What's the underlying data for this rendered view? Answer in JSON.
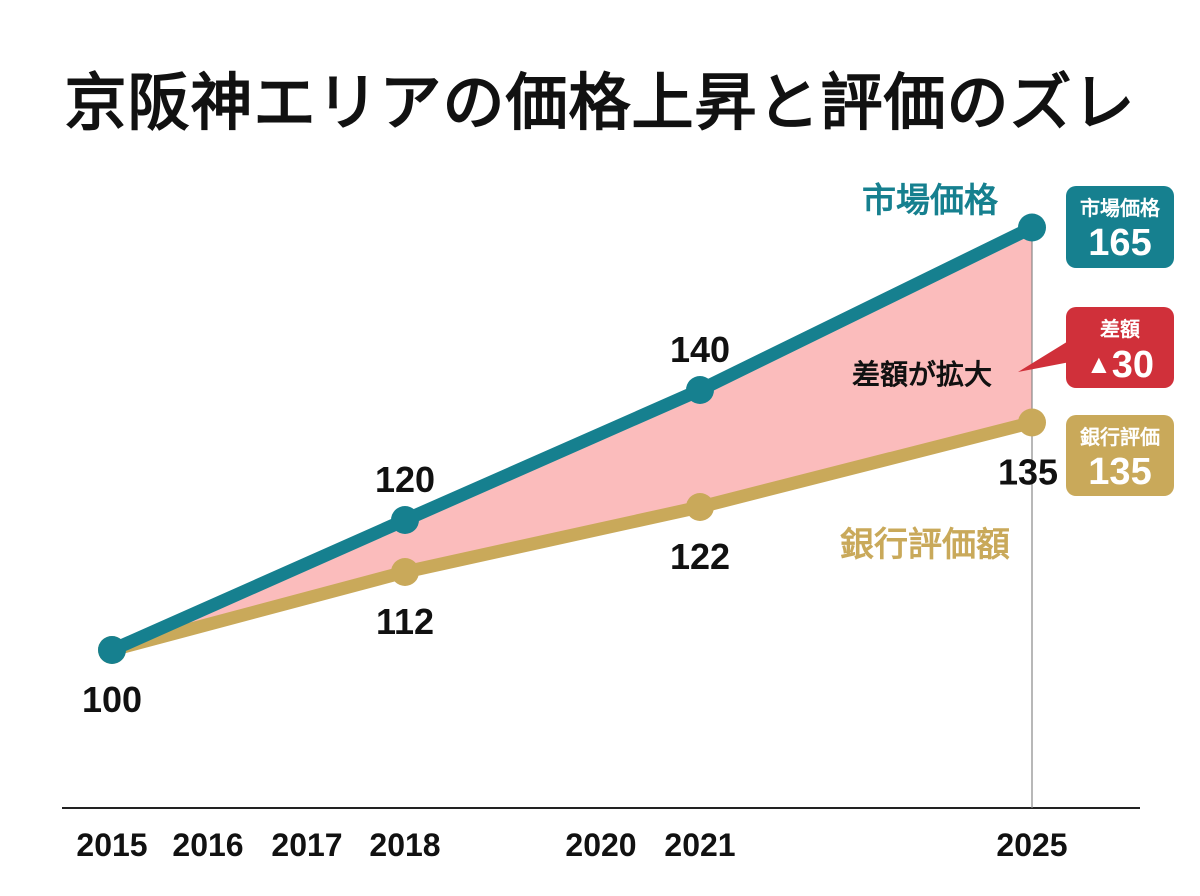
{
  "chart_data": {
    "type": "line",
    "title": "京阪神エリアの価格上昇と評価のズレ",
    "x_ticks": [
      "2015",
      "2016",
      "2017",
      "2018",
      "2020",
      "2021",
      "2025"
    ],
    "series": [
      {
        "name": "市場価格",
        "color": "#16808f",
        "points": [
          {
            "x": 2015,
            "y": 100
          },
          {
            "x": 2018,
            "y": 120
          },
          {
            "x": 2021,
            "y": 140
          },
          {
            "x": 2025,
            "y": 165
          }
        ],
        "labels": [
          "100",
          "120",
          "140",
          ""
        ]
      },
      {
        "name": "銀行評価額",
        "color": "#c9a95a",
        "points": [
          {
            "x": 2015,
            "y": 100
          },
          {
            "x": 2018,
            "y": 112
          },
          {
            "x": 2021,
            "y": 122
          },
          {
            "x": 2025,
            "y": 135
          }
        ],
        "labels": [
          "",
          "112",
          "122",
          "135"
        ]
      }
    ],
    "gap_fill_color": "#fbbcbc",
    "gap_annotation": "差額が拡大",
    "callouts": {
      "market": {
        "label": "市場価格",
        "value": "165",
        "color": "#16808f"
      },
      "gap": {
        "label": "差額",
        "value": "30",
        "icon": "warning-icon",
        "color": "#d0303a"
      },
      "bank": {
        "label": "銀行評価",
        "value": "135",
        "color": "#c9a95a"
      }
    },
    "grid": false
  }
}
